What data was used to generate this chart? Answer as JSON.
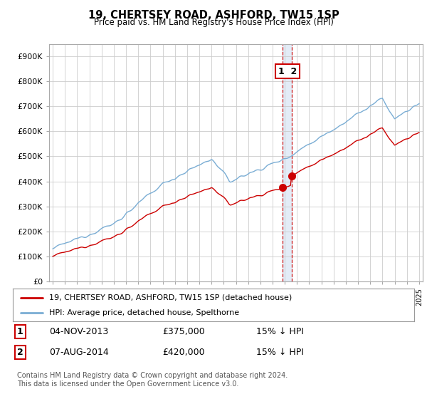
{
  "title": "19, CHERTSEY ROAD, ASHFORD, TW15 1SP",
  "subtitle": "Price paid vs. HM Land Registry's House Price Index (HPI)",
  "legend_line1": "19, CHERTSEY ROAD, ASHFORD, TW15 1SP (detached house)",
  "legend_line2": "HPI: Average price, detached house, Spelthorne",
  "transaction1_date": "04-NOV-2013",
  "transaction1_price": 375000,
  "transaction1_note": "15% ↓ HPI",
  "transaction2_date": "07-AUG-2014",
  "transaction2_price": 420000,
  "transaction2_note": "15% ↓ HPI",
  "footer": "Contains HM Land Registry data © Crown copyright and database right 2024.\nThis data is licensed under the Open Government Licence v3.0.",
  "line_color_property": "#cc0000",
  "line_color_hpi": "#7aadd4",
  "vline_color": "#cc0000",
  "fill_color": "#dde8f5",
  "ylim": [
    0,
    950000
  ],
  "yticks": [
    0,
    100000,
    200000,
    300000,
    400000,
    500000,
    600000,
    700000,
    800000,
    900000
  ],
  "background_color": "#ffffff",
  "grid_color": "#cccccc"
}
